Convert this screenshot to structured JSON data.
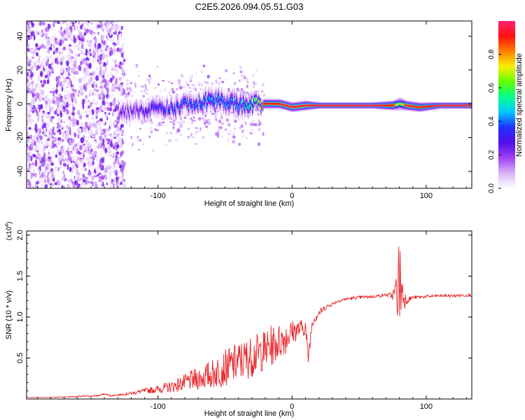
{
  "title": "C2E5.2026.094.05.51.G03",
  "colors": {
    "snr_line": "#e8262a",
    "spectrum_gradient": [
      "#ffffff",
      "#d8b4f8",
      "#a040f0",
      "#5010e8",
      "#2030ff",
      "#00c8ff",
      "#00ff90",
      "#60ff00",
      "#f8f000",
      "#ff8000",
      "#ff1010",
      "#ff2070"
    ]
  },
  "chart_data": [
    {
      "type": "heatmap",
      "title": "C2E5.2026.094.05.51.G03",
      "xlabel": "Height of straight line (km)",
      "ylabel": "Frequency (Hz)",
      "xlim": [
        -198,
        134
      ],
      "ylim": [
        -50,
        49
      ],
      "xticks": [
        -100,
        0,
        100
      ],
      "xtick_labels": [
        "-100",
        "0",
        "100"
      ],
      "yticks": [
        -40,
        -20,
        0,
        20,
        40
      ],
      "ytick_labels": [
        "-40",
        "-20",
        "0",
        "20",
        "40"
      ],
      "colorbar": {
        "label": "Normalized spectral amplitude",
        "range": [
          0,
          1
        ],
        "ticks": [
          0.0,
          0.2,
          0.4,
          0.6,
          0.8
        ],
        "tick_labels": [
          "0.0",
          "0.2",
          "0.4",
          "0.6",
          "0.8"
        ]
      },
      "ridge": {
        "description": "dominant frequency track versus height",
        "x": [
          -125,
          -110,
          -100,
          -90,
          -80,
          -70,
          -60,
          -50,
          -40,
          -30,
          -22,
          -10,
          0,
          10,
          20,
          40,
          60,
          75,
          80,
          85,
          95,
          110,
          134
        ],
        "freq": [
          -5,
          -4,
          -2,
          -3,
          -1,
          0,
          2,
          1,
          -1,
          0,
          0,
          0,
          -2,
          -1,
          -1,
          -1,
          -1,
          -1,
          0,
          -1,
          -2,
          -1,
          -1
        ],
        "amplitude": [
          0.25,
          0.3,
          0.35,
          0.38,
          0.4,
          0.42,
          0.45,
          0.42,
          0.45,
          0.55,
          0.9,
          0.92,
          0.95,
          0.95,
          0.96,
          0.97,
          0.97,
          0.9,
          0.6,
          0.95,
          0.9,
          0.97,
          0.97
        ],
        "half_width_hz": [
          6,
          6,
          6,
          6,
          6,
          6,
          7,
          7,
          7,
          6,
          3,
          3,
          3,
          3,
          2,
          2,
          2,
          3,
          4,
          3,
          3,
          2,
          2
        ]
      },
      "scatter_region": {
        "description": "low-amplitude noise speckle filling the band",
        "x_range": [
          -198,
          -125
        ],
        "amplitude_range": [
          0.02,
          0.25
        ]
      }
    },
    {
      "type": "line",
      "xlabel": "Height of straight line (km)",
      "ylabel": "SNR (10 * v/v)",
      "y_multiplier": "(x10^4)",
      "y_multiplier_base": "(x10",
      "y_multiplier_exp": "4",
      "y_multiplier_close": ")",
      "xlim": [
        -198,
        134
      ],
      "ylim": [
        0,
        2.05
      ],
      "xticks": [
        -100,
        0,
        100
      ],
      "xtick_labels": [
        "-100",
        "0",
        "100"
      ],
      "yticks": [
        0.5,
        1.0,
        1.5,
        2.0
      ],
      "ytick_labels": [
        "0.5",
        "1.0",
        "1.5",
        "2.0"
      ],
      "series": [
        {
          "name": "SNR",
          "x": [
            -198,
            -180,
            -160,
            -145,
            -140,
            -135,
            -130,
            -120,
            -110,
            -100,
            -90,
            -80,
            -70,
            -60,
            -50,
            -40,
            -30,
            -20,
            -15,
            -10,
            -5,
            0,
            5,
            10,
            12,
            15,
            20,
            25,
            30,
            35,
            40,
            50,
            60,
            70,
            75,
            78,
            80,
            82,
            85,
            90,
            100,
            110,
            120,
            134
          ],
          "y": [
            0.02,
            0.02,
            0.03,
            0.04,
            0.06,
            0.04,
            0.05,
            0.07,
            0.1,
            0.12,
            0.15,
            0.2,
            0.25,
            0.3,
            0.38,
            0.45,
            0.52,
            0.6,
            0.65,
            0.7,
            0.75,
            0.82,
            0.85,
            0.88,
            0.5,
            0.95,
            1.05,
            1.12,
            1.16,
            1.2,
            1.22,
            1.24,
            1.25,
            1.27,
            1.26,
            1.3,
            1.45,
            1.3,
            1.2,
            1.24,
            1.25,
            1.26,
            1.26,
            1.27
          ],
          "noise_amplitude": [
            0.0,
            0.0,
            0.01,
            0.01,
            0.01,
            0.01,
            0.01,
            0.02,
            0.03,
            0.05,
            0.07,
            0.1,
            0.14,
            0.18,
            0.22,
            0.25,
            0.25,
            0.25,
            0.25,
            0.22,
            0.2,
            0.15,
            0.12,
            0.1,
            0.1,
            0.08,
            0.05,
            0.03,
            0.02,
            0.02,
            0.02,
            0.02,
            0.02,
            0.02,
            0.05,
            0.3,
            0.6,
            0.3,
            0.05,
            0.02,
            0.02,
            0.02,
            0.02,
            0.02
          ]
        }
      ]
    }
  ]
}
